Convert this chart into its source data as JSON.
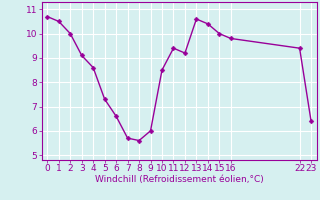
{
  "x": [
    0,
    1,
    2,
    3,
    4,
    5,
    6,
    7,
    8,
    9,
    10,
    11,
    12,
    13,
    14,
    15,
    16,
    22,
    23
  ],
  "y": [
    10.7,
    10.5,
    10.0,
    9.1,
    8.6,
    7.3,
    6.6,
    5.7,
    5.6,
    6.0,
    8.5,
    9.4,
    9.2,
    10.6,
    10.4,
    10.0,
    9.8,
    9.4,
    6.4
  ],
  "line_color": "#990099",
  "marker": "D",
  "marker_size": 2.5,
  "bg_color": "#d6f0f0",
  "grid_color": "#ffffff",
  "xlabel": "Windchill (Refroidissement éolien,°C)",
  "xlabel_color": "#990099",
  "tick_color": "#990099",
  "xlim": [
    -0.5,
    23.5
  ],
  "ylim": [
    4.8,
    11.3
  ],
  "xticks": [
    0,
    1,
    2,
    3,
    4,
    5,
    6,
    7,
    8,
    9,
    10,
    11,
    12,
    13,
    14,
    15,
    16,
    22,
    23
  ],
  "yticks": [
    5,
    6,
    7,
    8,
    9,
    10,
    11
  ],
  "font_size": 6.5,
  "label_font_size": 6.5,
  "linewidth": 1.0
}
